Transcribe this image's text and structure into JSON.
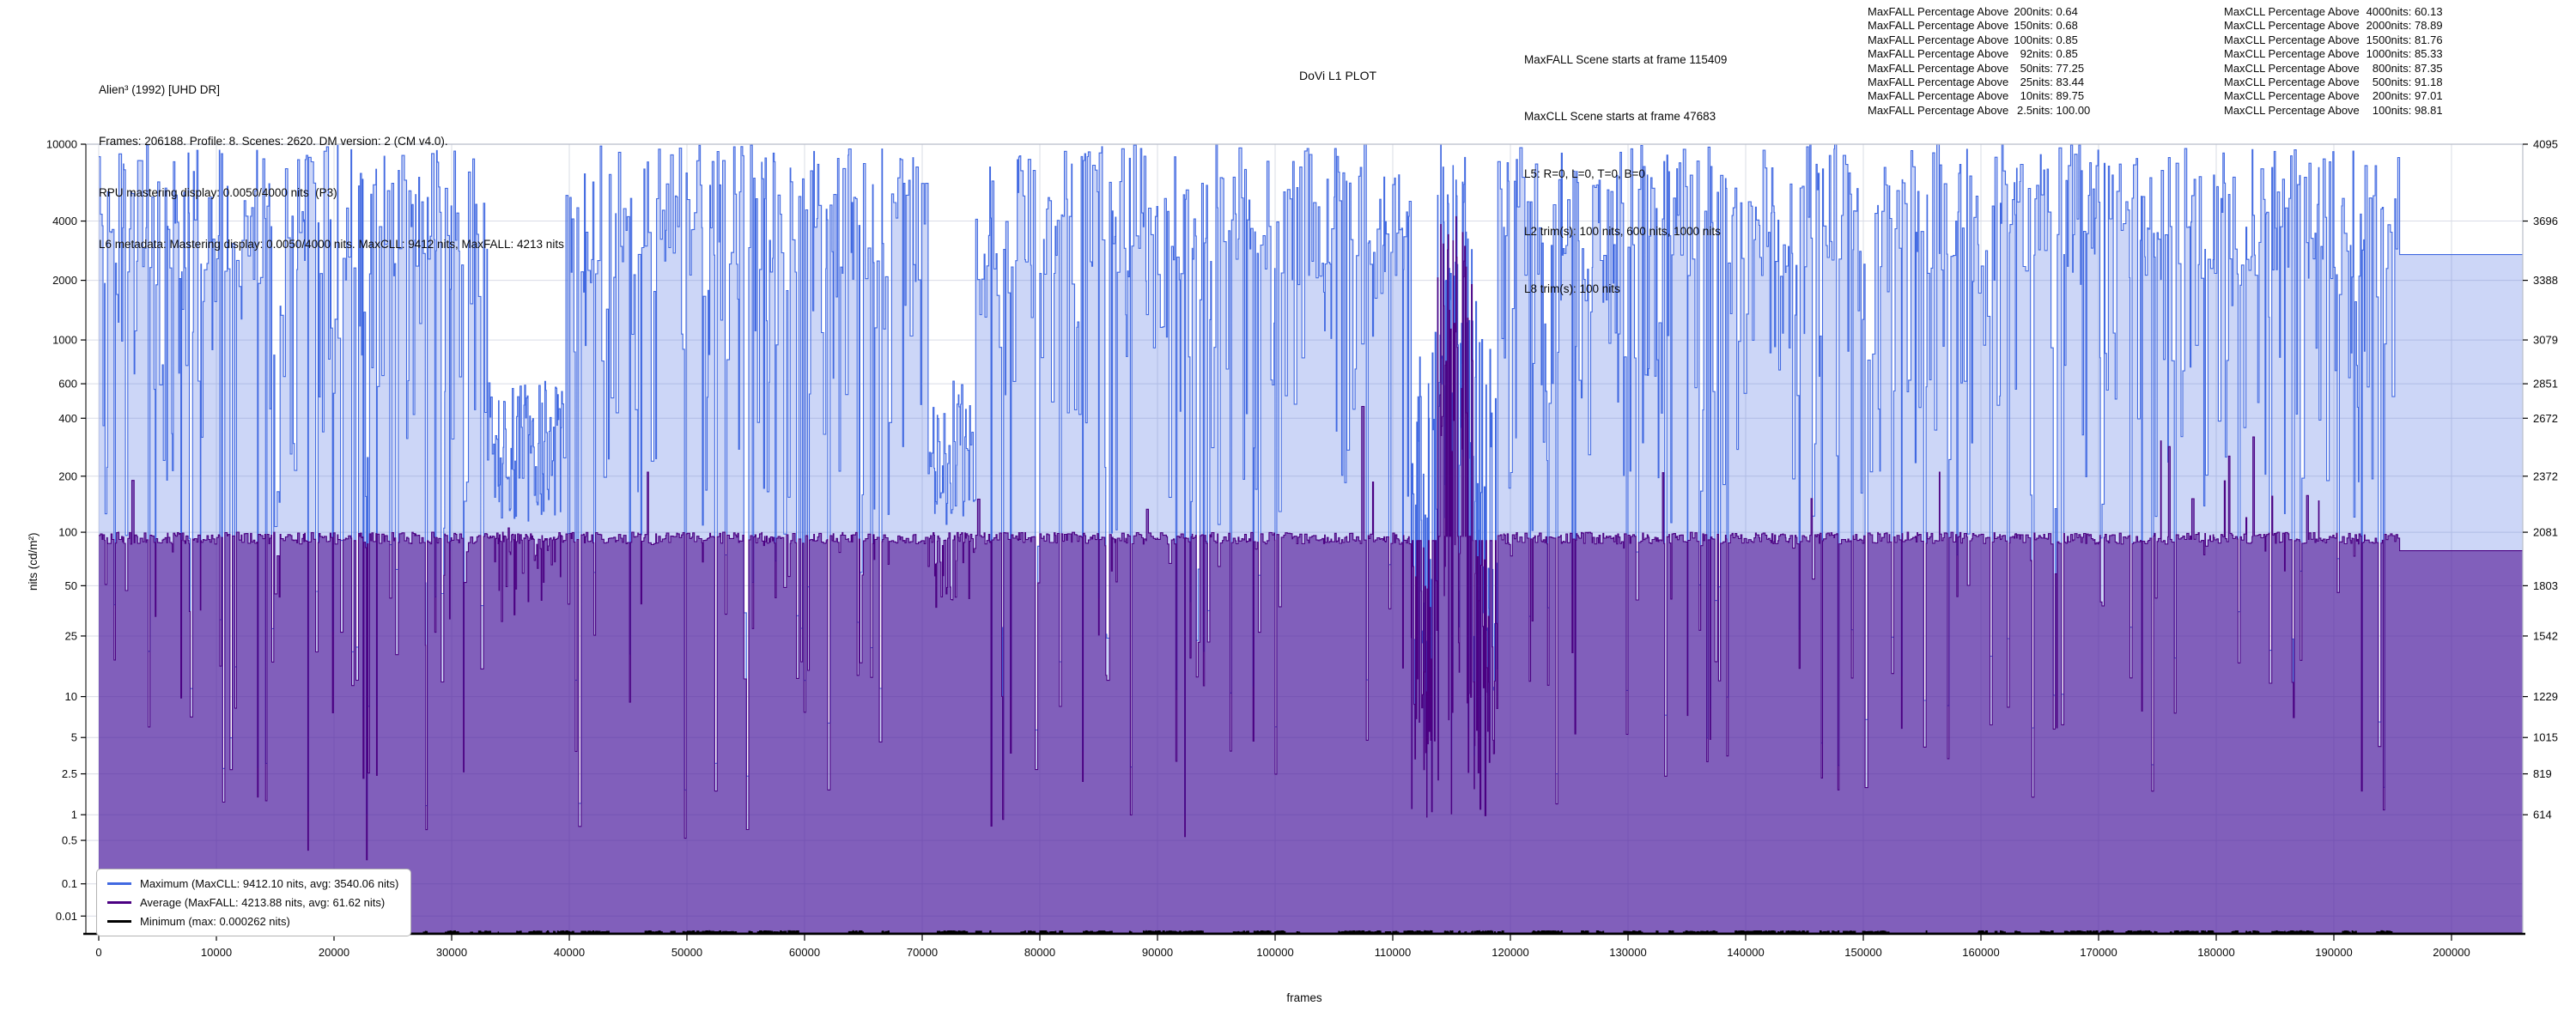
{
  "header": {
    "title": "Alien³ (1992) [UHD DR]",
    "lines": [
      "Frames: 206188. Profile: 8. Scenes: 2620. DM version: 2 (CM v4.0).",
      "RPU mastering display: 0.0050/4000 nits  (P3)",
      "L6 metadata: Mastering display: 0.0050/4000 nits. MaxCLL: 9412 nits, MaxFALL: 4213 nits"
    ]
  },
  "plot_label": "DoVi L1 PLOT",
  "scene_info": {
    "lines": [
      "MaxFALL Scene starts at frame 115409",
      "MaxCLL Scene starts at frame 47683",
      "L5: R=0, L=0, T=0, B=0",
      "L2 trim(s): 100 nits, 600 nits, 1000 nits",
      "L8 trim(s): 100 nits"
    ]
  },
  "maxfall_stats": {
    "prefix": "MaxFALL Percentage Above",
    "rows": [
      {
        "t": "200nits",
        "v": "0.64"
      },
      {
        "t": "150nits",
        "v": "0.68"
      },
      {
        "t": "100nits",
        "v": "0.85"
      },
      {
        "t": "92nits",
        "v": "0.85"
      },
      {
        "t": "50nits",
        "v": "77.25"
      },
      {
        "t": "25nits",
        "v": "83.44"
      },
      {
        "t": "10nits",
        "v": "89.75"
      },
      {
        "t": "2.5nits",
        "v": "100.00"
      }
    ]
  },
  "maxcll_stats": {
    "prefix": "MaxCLL Percentage Above",
    "rows": [
      {
        "t": "4000nits",
        "v": "60.13"
      },
      {
        "t": "2000nits",
        "v": "78.89"
      },
      {
        "t": "1500nits",
        "v": "81.76"
      },
      {
        "t": "1000nits",
        "v": "85.33"
      },
      {
        "t": "800nits",
        "v": "87.35"
      },
      {
        "t": "500nits",
        "v": "91.18"
      },
      {
        "t": "200nits",
        "v": "97.01"
      },
      {
        "t": "100nits",
        "v": "98.81"
      }
    ]
  },
  "legend": {
    "items": [
      {
        "label": "Maximum (MaxCLL: 9412.10 nits, avg: 3540.06 nits)",
        "color": "#4169e1"
      },
      {
        "label": "Average (MaxFALL: 4213.88 nits, avg: 61.62 nits)",
        "color": "#4b0082"
      },
      {
        "label": "Minimum (max: 0.000262 nits)",
        "color": "#000000"
      }
    ]
  },
  "axes": {
    "x": {
      "label": "frames",
      "ticks": [
        0,
        10000,
        20000,
        30000,
        40000,
        50000,
        60000,
        70000,
        80000,
        90000,
        100000,
        110000,
        120000,
        130000,
        140000,
        150000,
        160000,
        170000,
        180000,
        190000,
        200000
      ]
    },
    "y_left": {
      "label": "nits (cd/m²)",
      "ticks": [
        "10000",
        "4000",
        "2000",
        "1000",
        "600",
        "400",
        "200",
        "100",
        "50",
        "25",
        "10",
        "5",
        "2.5",
        "1",
        "0.5",
        "0.1",
        "0.01"
      ]
    },
    "y_right": {
      "ticks": [
        "4095",
        "3696",
        "3388",
        "3079",
        "2851",
        "2672",
        "2372",
        "2081",
        "1803",
        "1542",
        "1229",
        "1015",
        "819",
        "614"
      ]
    }
  },
  "chart_data": {
    "type": "area",
    "subtype": "per-scene step plot of Dolby Vision L1 metadata",
    "title": "DoVi L1 PLOT",
    "xlabel": "frames",
    "ylabel": "nits (cd/m²)",
    "x_range": [
      0,
      206188
    ],
    "total_frames": 206188,
    "scene_count": 2620,
    "y_axis_scale": "PQ (SMPTE ST 2084), 0 to 10000 nits",
    "y_ticks_nits": [
      10000,
      4000,
      2000,
      1000,
      600,
      400,
      200,
      100,
      50,
      25,
      10,
      5,
      2.5,
      1,
      0.5,
      0.1,
      0.01
    ],
    "y_right_ticks_pq12bit": [
      4095,
      3696,
      3388,
      3079,
      2851,
      2672,
      2372,
      2081,
      1803,
      1542,
      1229,
      1015,
      819,
      614
    ],
    "grid": true,
    "legend_position": "lower-left",
    "series": [
      {
        "name": "Maximum",
        "line_color": "#4169e1",
        "fill_color": "rgba(65,105,225,0.27)",
        "peak_nits": 9412.1,
        "peak_at_frame": 47683,
        "avg_nits": 3540.06
      },
      {
        "name": "Average",
        "line_color": "#4b0082",
        "fill_color": "rgba(83,22,150,0.62)",
        "peak_nits": 4213.88,
        "peak_at_frame": 115409,
        "avg_nits": 61.62
      },
      {
        "name": "Minimum",
        "line_color": "#000000",
        "peak_nits": 0.000262
      }
    ],
    "maxfall_percentage_above_nits": {
      "200": 0.64,
      "150": 0.68,
      "100": 0.85,
      "92": 0.85,
      "50": 77.25,
      "25": 83.44,
      "10": 89.75,
      "2.5": 100.0
    },
    "maxcll_percentage_above_nits": {
      "4000": 60.13,
      "2000": 78.89,
      "1500": 81.76,
      "1000": 85.33,
      "800": 87.35,
      "500": 91.18,
      "200": 97.01,
      "100": 98.81
    },
    "visual_profile": {
      "avg_plateau_nits_range": [
        86,
        100
      ],
      "flat_tail": {
        "from_frame": 195500,
        "max_nits": 2700,
        "avg_nits": 79
      },
      "low_max_zones_frames": [
        [
          33000,
          39500
        ],
        [
          70500,
          74500
        ],
        [
          111500,
          118800
        ]
      ],
      "avg_spike_cluster_frames": [
        [
          113800,
          116800
        ],
        [
          175000,
          189000
        ]
      ],
      "landmark_avg_spikes": [
        {
          "frame": 2900,
          "nits": 190
        },
        {
          "frame": 107500,
          "nits": 460
        }
      ]
    }
  }
}
